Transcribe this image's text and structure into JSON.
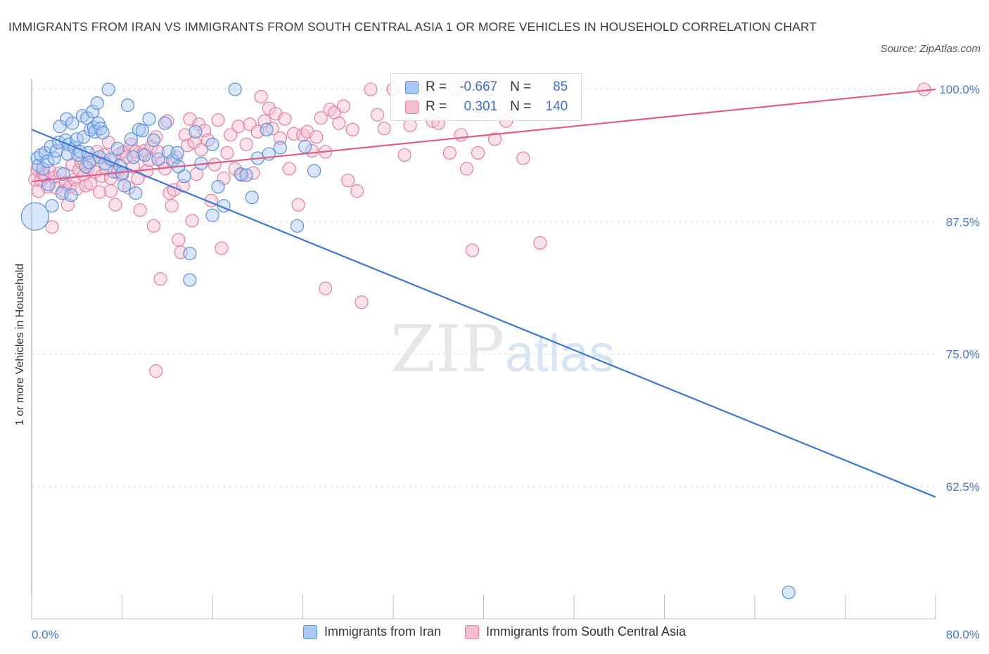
{
  "title": "IMMIGRANTS FROM IRAN VS IMMIGRANTS FROM SOUTH CENTRAL ASIA 1 OR MORE VEHICLES IN HOUSEHOLD CORRELATION CHART",
  "source": "Source: ZipAtlas.com",
  "watermark": {
    "zip": "ZIP",
    "atlas": "atlas"
  },
  "colors": {
    "iran_fill": "#a9c8f2",
    "iran_stroke": "#5b8fd8",
    "iran_line": "#3a78d4",
    "sca_fill": "#f6bcd0",
    "sca_stroke": "#e47ea2",
    "sca_line": "#e05c8c",
    "axis_text": "#4a78c8",
    "grid": "#dddddd"
  },
  "stats": {
    "iran": {
      "r_label": "R =",
      "r_value": "-0.667",
      "n_label": "N =",
      "n_value": "85"
    },
    "sca": {
      "r_label": "R =",
      "r_value": "0.301",
      "n_label": "N =",
      "n_value": "140"
    }
  },
  "chart_data": {
    "type": "scatter",
    "title": "IMMIGRANTS FROM IRAN VS IMMIGRANTS FROM SOUTH CENTRAL ASIA 1 OR MORE VEHICLES IN HOUSEHOLD CORRELATION CHART",
    "xlabel": "",
    "ylabel": "1 or more Vehicles in Household",
    "xlim": [
      0,
      80
    ],
    "ylim": [
      50,
      101
    ],
    "x_tick_labels": [
      {
        "value": 0,
        "label": "0.0%"
      },
      {
        "value": 80,
        "label": "80.0%"
      }
    ],
    "y_tick_labels": [
      {
        "value": 100,
        "label": "100.0%"
      },
      {
        "value": 87.5,
        "label": "87.5%"
      },
      {
        "value": 75,
        "label": "75.0%"
      },
      {
        "value": 62.5,
        "label": "62.5%"
      }
    ],
    "legend_position": "bottom-center",
    "series": [
      {
        "name": "Immigrants from Iran",
        "r": -0.667,
        "n": 85,
        "trend": {
          "x": [
            0,
            80
          ],
          "y": [
            96.2,
            61.5
          ]
        },
        "points": [
          {
            "x": 0.3,
            "y": 88.0,
            "s": 3
          },
          {
            "x": 0.5,
            "y": 93.5
          },
          {
            "x": 0.6,
            "y": 92.8
          },
          {
            "x": 0.8,
            "y": 93.8
          },
          {
            "x": 1.0,
            "y": 92.5
          },
          {
            "x": 1.2,
            "y": 94.0
          },
          {
            "x": 1.4,
            "y": 93.2
          },
          {
            "x": 1.5,
            "y": 91.0
          },
          {
            "x": 1.7,
            "y": 94.6
          },
          {
            "x": 1.8,
            "y": 89.0
          },
          {
            "x": 2.0,
            "y": 93.5
          },
          {
            "x": 2.2,
            "y": 94.2
          },
          {
            "x": 2.4,
            "y": 95.0
          },
          {
            "x": 2.5,
            "y": 96.5
          },
          {
            "x": 2.7,
            "y": 90.2
          },
          {
            "x": 2.8,
            "y": 92.0
          },
          {
            "x": 3.0,
            "y": 95.2
          },
          {
            "x": 3.1,
            "y": 97.2
          },
          {
            "x": 3.2,
            "y": 93.9
          },
          {
            "x": 3.3,
            "y": 94.8
          },
          {
            "x": 3.5,
            "y": 90.0
          },
          {
            "x": 3.6,
            "y": 96.8
          },
          {
            "x": 3.8,
            "y": 94.5
          },
          {
            "x": 4.0,
            "y": 95.3
          },
          {
            "x": 4.1,
            "y": 93.8
          },
          {
            "x": 4.3,
            "y": 94.1
          },
          {
            "x": 4.5,
            "y": 97.5
          },
          {
            "x": 4.6,
            "y": 95.5
          },
          {
            "x": 4.8,
            "y": 92.7
          },
          {
            "x": 4.9,
            "y": 97.3
          },
          {
            "x": 5.0,
            "y": 94.0
          },
          {
            "x": 5.1,
            "y": 93.1
          },
          {
            "x": 5.2,
            "y": 96.2
          },
          {
            "x": 5.4,
            "y": 97.9
          },
          {
            "x": 5.5,
            "y": 96.4
          },
          {
            "x": 5.6,
            "y": 96.0
          },
          {
            "x": 5.8,
            "y": 98.7
          },
          {
            "x": 5.9,
            "y": 96.8
          },
          {
            "x": 6.0,
            "y": 93.6
          },
          {
            "x": 6.1,
            "y": 96.3
          },
          {
            "x": 6.3,
            "y": 95.9
          },
          {
            "x": 6.5,
            "y": 93.0
          },
          {
            "x": 6.8,
            "y": 100.0
          },
          {
            "x": 7.0,
            "y": 93.4
          },
          {
            "x": 7.3,
            "y": 92.2
          },
          {
            "x": 7.6,
            "y": 94.4
          },
          {
            "x": 7.8,
            "y": 92.8
          },
          {
            "x": 8.0,
            "y": 92.1
          },
          {
            "x": 8.2,
            "y": 90.9
          },
          {
            "x": 8.5,
            "y": 98.5
          },
          {
            "x": 8.8,
            "y": 95.3
          },
          {
            "x": 9.0,
            "y": 93.6
          },
          {
            "x": 9.2,
            "y": 90.2
          },
          {
            "x": 9.5,
            "y": 96.2
          },
          {
            "x": 9.8,
            "y": 96.1
          },
          {
            "x": 10.0,
            "y": 93.8
          },
          {
            "x": 10.4,
            "y": 97.2
          },
          {
            "x": 10.8,
            "y": 95.2
          },
          {
            "x": 11.2,
            "y": 93.4
          },
          {
            "x": 11.8,
            "y": 96.8
          },
          {
            "x": 12.1,
            "y": 94.1
          },
          {
            "x": 12.5,
            "y": 93.3
          },
          {
            "x": 12.9,
            "y": 94.0
          },
          {
            "x": 13.0,
            "y": 92.7
          },
          {
            "x": 13.5,
            "y": 91.8
          },
          {
            "x": 14.0,
            "y": 84.5
          },
          {
            "x": 14.5,
            "y": 96.0
          },
          {
            "x": 15.0,
            "y": 93.0
          },
          {
            "x": 16.0,
            "y": 94.8
          },
          {
            "x": 16.5,
            "y": 90.8
          },
          {
            "x": 17.0,
            "y": 89.0
          },
          {
            "x": 18.0,
            "y": 100.0
          },
          {
            "x": 18.5,
            "y": 92.0
          },
          {
            "x": 19.0,
            "y": 91.9
          },
          {
            "x": 19.5,
            "y": 89.8
          },
          {
            "x": 20.0,
            "y": 93.5
          },
          {
            "x": 20.8,
            "y": 96.2
          },
          {
            "x": 21.0,
            "y": 93.9
          },
          {
            "x": 22.0,
            "y": 94.5
          },
          {
            "x": 23.5,
            "y": 87.1
          },
          {
            "x": 24.2,
            "y": 94.6
          },
          {
            "x": 25.0,
            "y": 92.3
          },
          {
            "x": 16.0,
            "y": 88.1
          },
          {
            "x": 14.0,
            "y": 82.0
          },
          {
            "x": 67.0,
            "y": 52.5
          }
        ]
      },
      {
        "name": "Immigrants from South Central Asia",
        "r": 0.301,
        "n": 140,
        "trend": {
          "x": [
            0,
            80
          ],
          "y": [
            91.3,
            100.0
          ]
        },
        "points": [
          {
            "x": 0.3,
            "y": 91.5
          },
          {
            "x": 0.5,
            "y": 92.4
          },
          {
            "x": 0.6,
            "y": 90.4
          },
          {
            "x": 0.8,
            "y": 91.4
          },
          {
            "x": 1.0,
            "y": 92.0
          },
          {
            "x": 1.2,
            "y": 91.8
          },
          {
            "x": 1.4,
            "y": 90.8
          },
          {
            "x": 1.6,
            "y": 92.3
          },
          {
            "x": 1.8,
            "y": 87.0
          },
          {
            "x": 2.0,
            "y": 91.7
          },
          {
            "x": 2.2,
            "y": 90.7
          },
          {
            "x": 2.5,
            "y": 92.1
          },
          {
            "x": 2.8,
            "y": 90.4
          },
          {
            "x": 3.0,
            "y": 91.2
          },
          {
            "x": 3.2,
            "y": 89.1
          },
          {
            "x": 3.4,
            "y": 90.8
          },
          {
            "x": 3.6,
            "y": 92.9
          },
          {
            "x": 3.8,
            "y": 91.5
          },
          {
            "x": 4.0,
            "y": 90.6
          },
          {
            "x": 4.2,
            "y": 92.4
          },
          {
            "x": 4.4,
            "y": 93.1
          },
          {
            "x": 4.6,
            "y": 91.9
          },
          {
            "x": 4.8,
            "y": 90.9
          },
          {
            "x": 5.0,
            "y": 92.6
          },
          {
            "x": 5.2,
            "y": 91.1
          },
          {
            "x": 5.4,
            "y": 93.4
          },
          {
            "x": 5.6,
            "y": 92.2
          },
          {
            "x": 5.8,
            "y": 94.1
          },
          {
            "x": 6.0,
            "y": 90.3
          },
          {
            "x": 6.2,
            "y": 91.8
          },
          {
            "x": 6.4,
            "y": 93.8
          },
          {
            "x": 6.6,
            "y": 92.5
          },
          {
            "x": 6.8,
            "y": 95.0
          },
          {
            "x": 7.0,
            "y": 91.6
          },
          {
            "x": 7.2,
            "y": 93.3
          },
          {
            "x": 7.4,
            "y": 89.1
          },
          {
            "x": 7.6,
            "y": 92.2
          },
          {
            "x": 7.8,
            "y": 93.9
          },
          {
            "x": 8.0,
            "y": 91.9
          },
          {
            "x": 8.2,
            "y": 94.1
          },
          {
            "x": 8.4,
            "y": 93.6
          },
          {
            "x": 8.6,
            "y": 90.7
          },
          {
            "x": 8.8,
            "y": 94.8
          },
          {
            "x": 9.0,
            "y": 92.7
          },
          {
            "x": 9.2,
            "y": 94.1
          },
          {
            "x": 9.4,
            "y": 91.6
          },
          {
            "x": 9.6,
            "y": 88.6
          },
          {
            "x": 9.8,
            "y": 93.9
          },
          {
            "x": 10.0,
            "y": 94.2
          },
          {
            "x": 10.2,
            "y": 92.3
          },
          {
            "x": 10.4,
            "y": 93.3
          },
          {
            "x": 10.6,
            "y": 94.6
          },
          {
            "x": 10.8,
            "y": 87.1
          },
          {
            "x": 11.0,
            "y": 95.5
          },
          {
            "x": 11.2,
            "y": 94.1
          },
          {
            "x": 11.4,
            "y": 82.1
          },
          {
            "x": 11.6,
            "y": 93.1
          },
          {
            "x": 11.8,
            "y": 92.5
          },
          {
            "x": 12.0,
            "y": 97.0
          },
          {
            "x": 12.2,
            "y": 90.2
          },
          {
            "x": 12.4,
            "y": 89.0
          },
          {
            "x": 12.6,
            "y": 90.5
          },
          {
            "x": 12.8,
            "y": 93.6
          },
          {
            "x": 13.0,
            "y": 85.8
          },
          {
            "x": 13.2,
            "y": 84.6
          },
          {
            "x": 13.4,
            "y": 90.9
          },
          {
            "x": 13.6,
            "y": 95.7
          },
          {
            "x": 13.8,
            "y": 94.7
          },
          {
            "x": 14.0,
            "y": 97.2
          },
          {
            "x": 14.2,
            "y": 87.6
          },
          {
            "x": 14.4,
            "y": 95.0
          },
          {
            "x": 14.6,
            "y": 92.0
          },
          {
            "x": 14.8,
            "y": 96.7
          },
          {
            "x": 15.0,
            "y": 94.3
          },
          {
            "x": 15.3,
            "y": 96.1
          },
          {
            "x": 15.6,
            "y": 95.2
          },
          {
            "x": 15.9,
            "y": 89.5
          },
          {
            "x": 16.2,
            "y": 92.9
          },
          {
            "x": 16.5,
            "y": 97.1
          },
          {
            "x": 16.8,
            "y": 85.0
          },
          {
            "x": 17.0,
            "y": 91.6
          },
          {
            "x": 17.3,
            "y": 94.0
          },
          {
            "x": 17.6,
            "y": 95.7
          },
          {
            "x": 18.0,
            "y": 92.5
          },
          {
            "x": 18.3,
            "y": 96.5
          },
          {
            "x": 18.6,
            "y": 91.9
          },
          {
            "x": 19.0,
            "y": 94.8
          },
          {
            "x": 19.3,
            "y": 96.7
          },
          {
            "x": 19.6,
            "y": 92.1
          },
          {
            "x": 20.0,
            "y": 96.0
          },
          {
            "x": 20.3,
            "y": 99.3
          },
          {
            "x": 20.6,
            "y": 97.0
          },
          {
            "x": 21.0,
            "y": 98.2
          },
          {
            "x": 21.3,
            "y": 96.3
          },
          {
            "x": 21.6,
            "y": 97.7
          },
          {
            "x": 22.0,
            "y": 95.4
          },
          {
            "x": 22.4,
            "y": 97.2
          },
          {
            "x": 22.8,
            "y": 92.5
          },
          {
            "x": 23.2,
            "y": 95.8
          },
          {
            "x": 23.6,
            "y": 89.1
          },
          {
            "x": 24.0,
            "y": 95.7
          },
          {
            "x": 24.4,
            "y": 96.0
          },
          {
            "x": 24.8,
            "y": 94.2
          },
          {
            "x": 25.2,
            "y": 95.5
          },
          {
            "x": 25.6,
            "y": 97.3
          },
          {
            "x": 26.0,
            "y": 94.1
          },
          {
            "x": 26.4,
            "y": 98.1
          },
          {
            "x": 26.8,
            "y": 97.8
          },
          {
            "x": 27.2,
            "y": 96.8
          },
          {
            "x": 27.6,
            "y": 98.4
          },
          {
            "x": 28.0,
            "y": 91.4
          },
          {
            "x": 28.4,
            "y": 96.2
          },
          {
            "x": 28.8,
            "y": 90.4
          },
          {
            "x": 29.2,
            "y": 79.9
          },
          {
            "x": 30.0,
            "y": 100.0
          },
          {
            "x": 30.6,
            "y": 97.6
          },
          {
            "x": 31.2,
            "y": 96.3
          },
          {
            "x": 32.0,
            "y": 100.0
          },
          {
            "x": 33.0,
            "y": 93.8
          },
          {
            "x": 33.5,
            "y": 96.6
          },
          {
            "x": 34.0,
            "y": 100.0
          },
          {
            "x": 35.0,
            "y": 100.0
          },
          {
            "x": 35.5,
            "y": 97.0
          },
          {
            "x": 36.0,
            "y": 96.8
          },
          {
            "x": 37.0,
            "y": 94.0
          },
          {
            "x": 37.5,
            "y": 100.0
          },
          {
            "x": 38.0,
            "y": 95.7
          },
          {
            "x": 38.5,
            "y": 92.5
          },
          {
            "x": 39.0,
            "y": 84.8
          },
          {
            "x": 39.5,
            "y": 94.0
          },
          {
            "x": 40.0,
            "y": 97.9
          },
          {
            "x": 40.5,
            "y": 100.0
          },
          {
            "x": 41.0,
            "y": 95.3
          },
          {
            "x": 42.0,
            "y": 97.0
          },
          {
            "x": 43.5,
            "y": 93.5
          },
          {
            "x": 45.0,
            "y": 85.5
          },
          {
            "x": 26.0,
            "y": 81.2
          },
          {
            "x": 11.0,
            "y": 73.4
          },
          {
            "x": 7.0,
            "y": 90.4
          },
          {
            "x": 79.0,
            "y": 100.0
          }
        ]
      }
    ]
  },
  "legend": {
    "items": [
      {
        "label": "Immigrants from Iran"
      },
      {
        "label": "Immigrants from South Central Asia"
      }
    ]
  }
}
